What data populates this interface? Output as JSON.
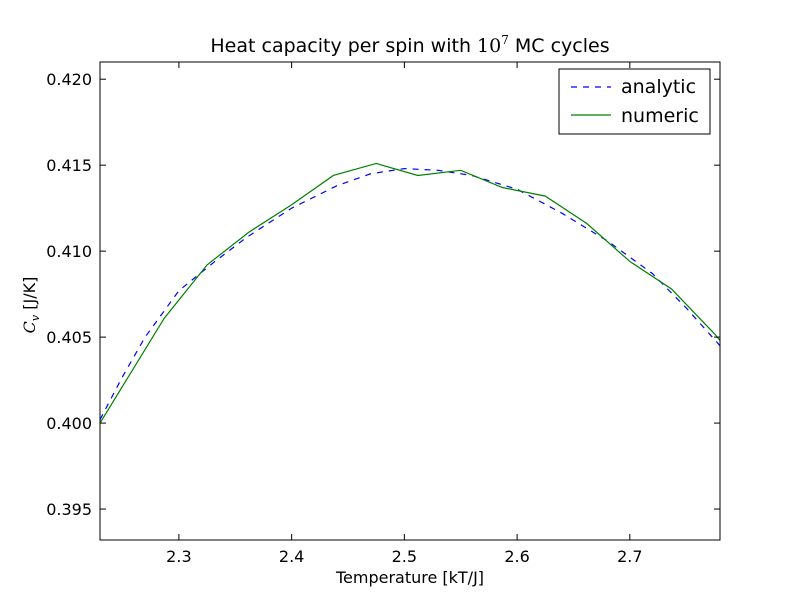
{
  "chart_data": {
    "type": "line",
    "title": {
      "prefix": "Heat capacity per spin with ",
      "base": "10",
      "exponent": "7",
      "suffix": " MC cycles"
    },
    "xlabel": "Temperature [kT/J]",
    "ylabel": {
      "symbol": "C",
      "subscript": "v",
      "unit": " [J/K]"
    },
    "xlim": [
      2.23,
      2.78
    ],
    "ylim": [
      0.3932,
      0.421
    ],
    "xticks": [
      2.3,
      2.4,
      2.5,
      2.6,
      2.7
    ],
    "xtick_labels": [
      "2.3",
      "2.4",
      "2.5",
      "2.6",
      "2.7"
    ],
    "yticks": [
      0.395,
      0.4,
      0.405,
      0.41,
      0.415,
      0.42
    ],
    "ytick_labels": [
      "0.395",
      "0.400",
      "0.405",
      "0.410",
      "0.415",
      "0.420"
    ],
    "grid": false,
    "legend_position": "top-right",
    "series": [
      {
        "name": "analytic",
        "color": "#0000ff",
        "style": "dashed",
        "x": [
          2.23,
          2.25,
          2.27,
          2.3,
          2.33,
          2.36,
          2.4,
          2.44,
          2.47,
          2.5,
          2.53,
          2.56,
          2.6,
          2.64,
          2.68,
          2.72,
          2.75,
          2.78
        ],
        "y": [
          0.4002,
          0.4027,
          0.405,
          0.4077,
          0.4093,
          0.4108,
          0.4125,
          0.4138,
          0.4145,
          0.4148,
          0.4147,
          0.4144,
          0.4136,
          0.4122,
          0.4106,
          0.4087,
          0.4067,
          0.4045
        ]
      },
      {
        "name": "numeric",
        "color": "#008000",
        "style": "solid",
        "x": [
          2.23,
          2.287,
          2.325,
          2.362,
          2.4,
          2.437,
          2.475,
          2.512,
          2.55,
          2.587,
          2.625,
          2.662,
          2.7,
          2.737,
          2.775,
          2.78
        ],
        "y": [
          0.4,
          0.4061,
          0.4092,
          0.4111,
          0.4127,
          0.4144,
          0.4151,
          0.4144,
          0.4147,
          0.4137,
          0.4132,
          0.4116,
          0.4094,
          0.4078,
          0.4052,
          0.4048
        ]
      }
    ]
  }
}
